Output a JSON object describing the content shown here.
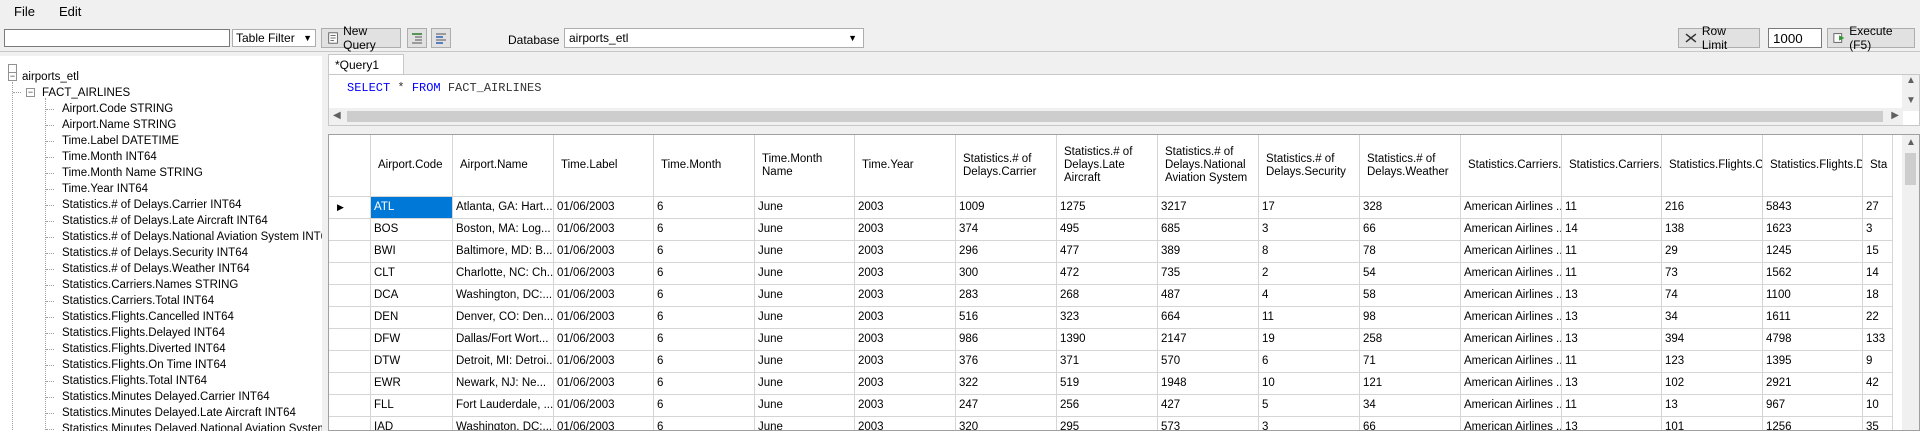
{
  "menu": {
    "file": "File",
    "edit": "Edit"
  },
  "toolbar": {
    "filter_value": "",
    "filter_mode": "Table Filter",
    "new_query": "New Query",
    "database_label": "Database",
    "database_value": "airports_etl",
    "row_limit": "Row Limit",
    "row_limit_value": "1000",
    "execute": "Execute (F5)"
  },
  "tree": {
    "root": "airports_etl",
    "table": "FACT_AIRLINES",
    "columns": [
      "Airport.Code STRING",
      "Airport.Name STRING",
      "Time.Label DATETIME",
      "Time.Month INT64",
      "Time.Month Name STRING",
      "Time.Year INT64",
      "Statistics.# of Delays.Carrier INT64",
      "Statistics.# of Delays.Late Aircraft INT64",
      "Statistics.# of Delays.National Aviation System INT64",
      "Statistics.# of Delays.Security INT64",
      "Statistics.# of Delays.Weather INT64",
      "Statistics.Carriers.Names STRING",
      "Statistics.Carriers.Total INT64",
      "Statistics.Flights.Cancelled INT64",
      "Statistics.Flights.Delayed INT64",
      "Statistics.Flights.Diverted INT64",
      "Statistics.Flights.On Time INT64",
      "Statistics.Flights.Total INT64",
      "Statistics.Minutes Delayed.Carrier INT64",
      "Statistics.Minutes Delayed.Late Aircraft INT64",
      "Statistics.Minutes Delayed.National Aviation System IN"
    ]
  },
  "query_tab": "*Query1",
  "sql": {
    "kw1": "SELECT",
    "star": " * ",
    "kw2": "FROM",
    "table": " FACT_AIRLINES"
  },
  "grid": {
    "headers": [
      "Airport.Code",
      "Airport.Name",
      "Time.Label",
      "Time.Month",
      "Time.Month Name",
      "Time.Year",
      "Statistics.# of Delays.Carrier",
      "Statistics.# of Delays.Late Aircraft",
      "Statistics.# of Delays.National Aviation System",
      "Statistics.# of Delays.Security",
      "Statistics.# of Delays.Weather",
      "Statistics.Carriers.N",
      "Statistics.Carriers.Tc",
      "Statistics.Flights.Ca",
      "Statistics.Flights.De",
      "Sta"
    ],
    "rows": [
      [
        "ATL",
        "Atlanta, GA: Hart...",
        "01/06/2003",
        "6",
        "June",
        "2003",
        "1009",
        "1275",
        "3217",
        "17",
        "328",
        "American Airlines ...",
        "11",
        "216",
        "5843",
        "27"
      ],
      [
        "BOS",
        "Boston, MA: Log...",
        "01/06/2003",
        "6",
        "June",
        "2003",
        "374",
        "495",
        "685",
        "3",
        "66",
        "American Airlines ...",
        "14",
        "138",
        "1623",
        "3"
      ],
      [
        "BWI",
        "Baltimore, MD: B...",
        "01/06/2003",
        "6",
        "June",
        "2003",
        "296",
        "477",
        "389",
        "8",
        "78",
        "American Airlines ...",
        "11",
        "29",
        "1245",
        "15"
      ],
      [
        "CLT",
        "Charlotte, NC: Ch...",
        "01/06/2003",
        "6",
        "June",
        "2003",
        "300",
        "472",
        "735",
        "2",
        "54",
        "American Airlines ...",
        "11",
        "73",
        "1562",
        "14"
      ],
      [
        "DCA",
        "Washington, DC:...",
        "01/06/2003",
        "6",
        "June",
        "2003",
        "283",
        "268",
        "487",
        "4",
        "58",
        "American Airlines ...",
        "13",
        "74",
        "1100",
        "18"
      ],
      [
        "DEN",
        "Denver, CO: Den...",
        "01/06/2003",
        "6",
        "June",
        "2003",
        "516",
        "323",
        "664",
        "11",
        "98",
        "American Airlines ...",
        "13",
        "34",
        "1611",
        "22"
      ],
      [
        "DFW",
        "Dallas/Fort Wort...",
        "01/06/2003",
        "6",
        "June",
        "2003",
        "986",
        "1390",
        "2147",
        "19",
        "258",
        "American Airlines ...",
        "13",
        "394",
        "4798",
        "133"
      ],
      [
        "DTW",
        "Detroit, MI: Detroi...",
        "01/06/2003",
        "6",
        "June",
        "2003",
        "376",
        "371",
        "570",
        "6",
        "71",
        "American Airlines ...",
        "11",
        "123",
        "1395",
        "9"
      ],
      [
        "EWR",
        "Newark, NJ: Ne...",
        "01/06/2003",
        "6",
        "June",
        "2003",
        "322",
        "519",
        "1948",
        "10",
        "121",
        "American Airlines ...",
        "13",
        "102",
        "2921",
        "42"
      ],
      [
        "FLL",
        "Fort Lauderdale, ...",
        "01/06/2003",
        "6",
        "June",
        "2003",
        "247",
        "256",
        "427",
        "5",
        "34",
        "American Airlines ...",
        "11",
        "13",
        "967",
        "10"
      ],
      [
        "IAD",
        "Washington, DC:...",
        "01/06/2003",
        "6",
        "June",
        "2003",
        "320",
        "295",
        "573",
        "3",
        "66",
        "American Airlines ...",
        "13",
        "101",
        "1256",
        "35"
      ]
    ]
  }
}
